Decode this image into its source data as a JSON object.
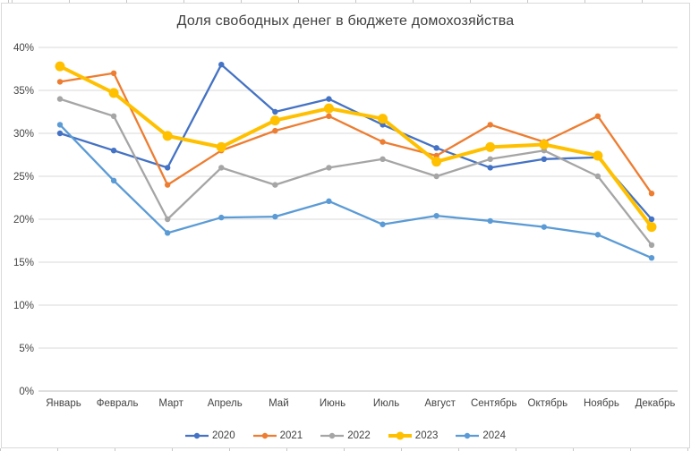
{
  "chart_data": {
    "type": "line",
    "title": "Доля свободных денег в бюджете домохозяйства",
    "categories": [
      "Январь",
      "Февраль",
      "Март",
      "Апрель",
      "Май",
      "Июнь",
      "Июль",
      "Август",
      "Сентябрь",
      "Октябрь",
      "Ноябрь",
      "Декабрь"
    ],
    "series": [
      {
        "name": "2020",
        "color": "#4472C4",
        "line_width": 2.3,
        "marker_radius": 3.2,
        "values": [
          30,
          28,
          26,
          38,
          32.5,
          34,
          31,
          28.3,
          26,
          27,
          27.2,
          20
        ]
      },
      {
        "name": "2021",
        "color": "#ED7D31",
        "line_width": 2.3,
        "marker_radius": 3.2,
        "values": [
          36,
          37,
          24,
          28,
          30.3,
          32,
          29,
          27.4,
          31,
          29,
          32,
          23
        ]
      },
      {
        "name": "2022",
        "color": "#A5A5A5",
        "line_width": 2.3,
        "marker_radius": 3.2,
        "values": [
          34,
          32,
          20,
          26,
          24,
          26,
          27,
          25,
          27,
          28,
          25,
          17
        ]
      },
      {
        "name": "2023",
        "color": "#FFC000",
        "line_width": 4,
        "marker_radius": 5.5,
        "values": [
          37.8,
          34.7,
          29.7,
          28.4,
          31.5,
          32.9,
          31.7,
          26.7,
          28.4,
          28.7,
          27.4,
          19.1
        ]
      },
      {
        "name": "2024",
        "color": "#5B9BD5",
        "line_width": 2.3,
        "marker_radius": 3.2,
        "values": [
          31,
          24.5,
          18.4,
          20.2,
          20.3,
          22.1,
          19.4,
          20.4,
          19.8,
          19.1,
          18.2,
          15.5
        ]
      }
    ],
    "ylim": [
      0,
      40
    ],
    "yticks": [
      {
        "v": 0,
        "label": "0%"
      },
      {
        "v": 5,
        "label": "5%"
      },
      {
        "v": 10,
        "label": "10%"
      },
      {
        "v": 15,
        "label": "15%"
      },
      {
        "v": 20,
        "label": "20%"
      },
      {
        "v": 25,
        "label": "25%"
      },
      {
        "v": 30,
        "label": "30%"
      },
      {
        "v": 35,
        "label": "35%"
      },
      {
        "v": 40,
        "label": "40%"
      }
    ],
    "xlabel": "",
    "ylabel": "",
    "grid": "horizontal",
    "legend_position": "bottom",
    "style": {
      "grid_color": "#D9D9D9",
      "axis_color": "#BFBFBF",
      "tick_label_color": "#444444",
      "title_color": "#404040",
      "background": "#FFFFFF",
      "frame_color": "#D9D9D9"
    }
  }
}
